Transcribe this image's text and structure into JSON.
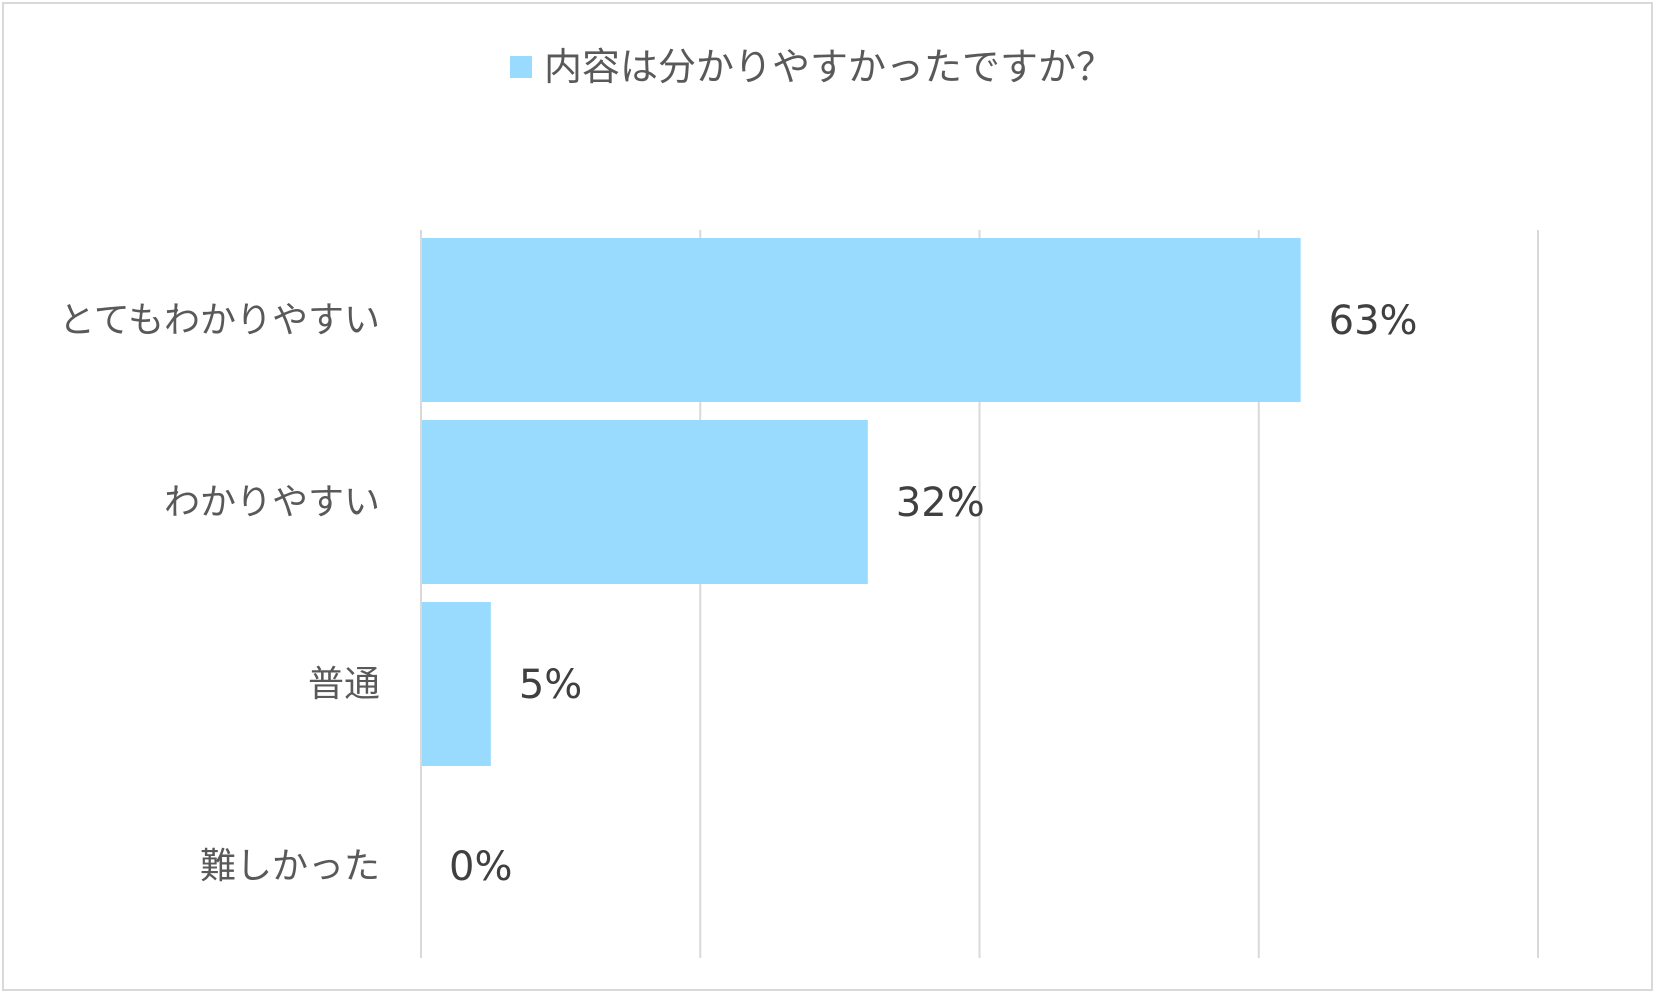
{
  "chart_data": {
    "type": "bar",
    "orientation": "horizontal",
    "categories": [
      "とてもわかりやすい",
      "わかりやすい",
      "普通",
      "難しかった"
    ],
    "series": [
      {
        "name": "内容は分かりやすかったですか？",
        "values": [
          63,
          32,
          5,
          0
        ],
        "labels": [
          "63%",
          "32%",
          "5%",
          "0%"
        ],
        "color": "#99dbff"
      }
    ],
    "title": "",
    "xlabel": "",
    "ylabel": "",
    "xlim": [
      0,
      80
    ],
    "gridlines": true,
    "gridline_color": "#d9d9d9",
    "legend_position": "top"
  }
}
